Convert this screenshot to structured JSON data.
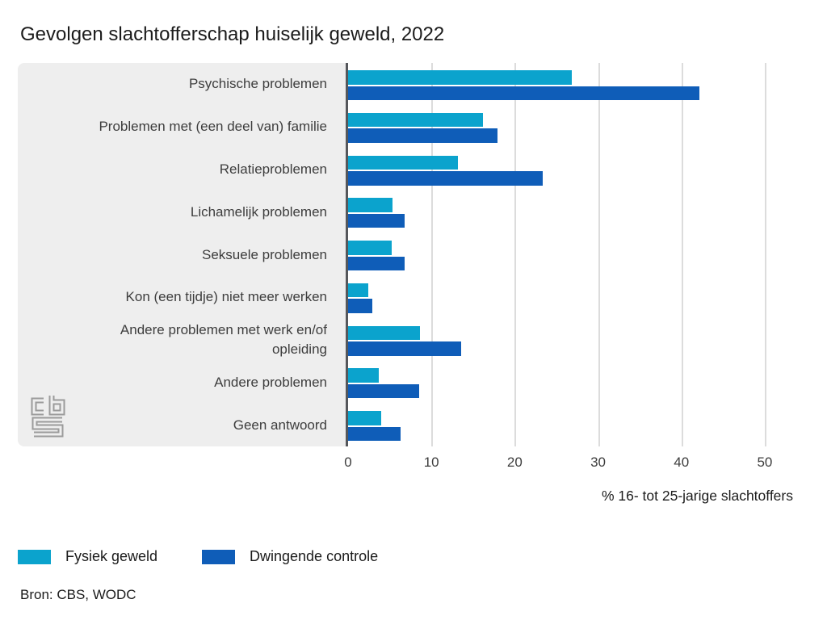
{
  "title": "Gevolgen slachtofferschap huiselijk geweld, 2022",
  "source": "Bron: CBS, WODC",
  "logo": "cbs",
  "chart_data": {
    "type": "bar",
    "orientation": "horizontal",
    "title": "Gevolgen slachtofferschap huiselijk geweld, 2022",
    "categories": [
      "Psychische problemen",
      "Problemen met (een deel van) familie",
      "Relatieproblemen",
      "Lichamelijk problemen",
      "Seksuele problemen",
      "Kon (een tijdje) niet meer werken",
      "Andere problemen met werk en/of opleiding",
      "Andere problemen",
      "Geen antwoord"
    ],
    "series": [
      {
        "name": "Fysiek geweld",
        "color": "#0ba3cd",
        "values": [
          26.8,
          16.2,
          13.2,
          5.3,
          5.2,
          2.4,
          8.6,
          3.7,
          4.0
        ]
      },
      {
        "name": "Dwingende controle",
        "color": "#0f5db8",
        "values": [
          42.2,
          17.9,
          23.4,
          6.8,
          6.8,
          2.9,
          13.6,
          8.5,
          6.3
        ]
      }
    ],
    "xlabel": "% 16- tot 25-jarige slachtoffers",
    "xticks": [
      0,
      10,
      20,
      30,
      40,
      50
    ],
    "xlim": [
      0,
      53.4
    ],
    "grid": true,
    "legend_position": "bottom",
    "colors": {
      "panel_bg": "#eeeeee",
      "axis_line": "#55575b",
      "gridline": "#dcdcdc",
      "text": "#3d3d3d"
    }
  }
}
